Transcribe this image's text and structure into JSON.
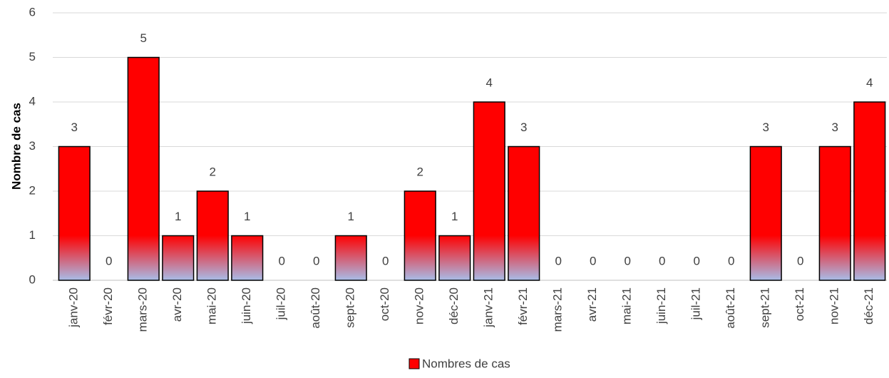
{
  "chart_data": {
    "type": "bar",
    "y_label": "Nombre de cas",
    "categories": [
      "janv-20",
      "févr-20",
      "mars-20",
      "avr-20",
      "mai-20",
      "juin-20",
      "juil-20",
      "août-20",
      "sept-20",
      "oct-20",
      "nov-20",
      "déc-20",
      "janv-21",
      "févr-21",
      "mars-21",
      "avr-21",
      "mai-21",
      "juin-21",
      "juil-21",
      "août-21",
      "sept-21",
      "oct-21",
      "nov-21",
      "déc-21"
    ],
    "series": [
      {
        "name": "Nombres de cas",
        "color": "#ff0000",
        "values": [
          3,
          0,
          5,
          1,
          2,
          1,
          0,
          0,
          1,
          0,
          2,
          1,
          4,
          3,
          0,
          0,
          0,
          0,
          0,
          0,
          3,
          0,
          3,
          4
        ]
      }
    ],
    "ylim": [
      0,
      6
    ],
    "yticks": [
      0,
      1,
      2,
      3,
      4,
      5,
      6
    ],
    "grid": true,
    "legend": "bottom"
  }
}
